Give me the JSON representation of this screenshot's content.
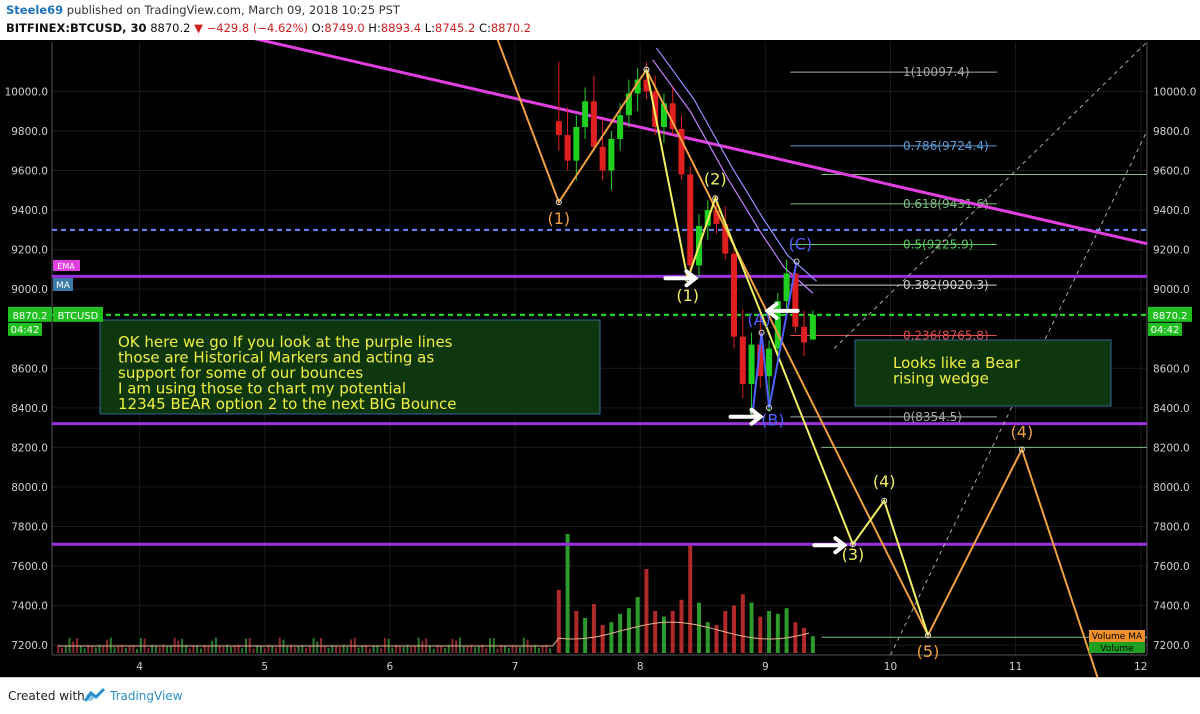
{
  "header": {
    "author": "Steele69",
    "published": " published on TradingView.com, March 09, 2018 10:25 PST",
    "symbol": "BITFINEX:BTCUSD, 30",
    "last": "8870.2",
    "change": "−429.8 (−4.62%)",
    "o_label": "O:",
    "o": "8749.0",
    "h_label": "H:",
    "h": "8893.4",
    "l_label": "L:",
    "l": "8745.2",
    "c_label": "C:",
    "c": "8870.2"
  },
  "footer": {
    "created": "Created with",
    "brand": "TradingView"
  },
  "colors": {
    "bg": "#000000",
    "up": "#20d020",
    "down": "#e02020",
    "purple": "#9b30e0",
    "magenta": "#e040e0",
    "orange": "#f0a040",
    "yellow": "#f0f060",
    "blue": "#6688ff",
    "green_dash": "#20e020"
  },
  "chart_data": {
    "type": "candlestick",
    "yaxis": {
      "ticks": [
        10000,
        9800,
        9600,
        9400,
        9200,
        9000,
        8600,
        8400,
        8200,
        8000,
        7800,
        7600,
        7400,
        7200
      ],
      "tick_labels": [
        "10000.0",
        "9800.0",
        "9600.0",
        "9400.0",
        "9200.0",
        "9000.0",
        "8600.0",
        "8400.0",
        "8200.0",
        "8000.0",
        "7800.0",
        "7600.0",
        "7400.0",
        "7200.0"
      ],
      "range": [
        7150,
        10250
      ]
    },
    "xaxis": {
      "ticks": [
        4,
        5,
        6,
        7,
        8,
        9,
        10,
        11,
        12
      ],
      "tick_labels": [
        "4",
        "5",
        "6",
        "7",
        "8",
        "9",
        "10",
        "11",
        "12"
      ],
      "range": [
        3.3,
        12.05
      ]
    },
    "price_label": {
      "value": 8870.2,
      "text": "8870.2",
      "symbol": "BTCUSD",
      "countdown": "04:42"
    },
    "indicator_labels": {
      "ema": "EMA",
      "ma": "MA",
      "volume": "Volume",
      "volume_ma": "Volume MA"
    },
    "candles": [
      {
        "t": 7.35,
        "o": 9850,
        "h": 10150,
        "l": 9700,
        "c": 9780
      },
      {
        "t": 7.42,
        "o": 9780,
        "h": 9920,
        "l": 9600,
        "c": 9650
      },
      {
        "t": 7.49,
        "o": 9650,
        "h": 9880,
        "l": 9550,
        "c": 9820
      },
      {
        "t": 7.56,
        "o": 9820,
        "h": 10020,
        "l": 9760,
        "c": 9950
      },
      {
        "t": 7.63,
        "o": 9950,
        "h": 10080,
        "l": 9700,
        "c": 9720
      },
      {
        "t": 7.7,
        "o": 9720,
        "h": 9860,
        "l": 9550,
        "c": 9600
      },
      {
        "t": 7.77,
        "o": 9600,
        "h": 9800,
        "l": 9500,
        "c": 9760
      },
      {
        "t": 7.84,
        "o": 9760,
        "h": 9940,
        "l": 9700,
        "c": 9880
      },
      {
        "t": 7.91,
        "o": 9880,
        "h": 10060,
        "l": 9820,
        "c": 9990
      },
      {
        "t": 7.98,
        "o": 9990,
        "h": 10120,
        "l": 9900,
        "c": 10060
      },
      {
        "t": 8.05,
        "o": 10060,
        "h": 10150,
        "l": 9960,
        "c": 10000
      },
      {
        "t": 8.12,
        "o": 10000,
        "h": 10080,
        "l": 9780,
        "c": 9820
      },
      {
        "t": 8.19,
        "o": 9820,
        "h": 9990,
        "l": 9740,
        "c": 9940
      },
      {
        "t": 8.26,
        "o": 9940,
        "h": 10020,
        "l": 9780,
        "c": 9810
      },
      {
        "t": 8.33,
        "o": 9810,
        "h": 9880,
        "l": 9550,
        "c": 9580
      },
      {
        "t": 8.4,
        "o": 9580,
        "h": 9620,
        "l": 9080,
        "c": 9120
      },
      {
        "t": 8.47,
        "o": 9120,
        "h": 9380,
        "l": 9060,
        "c": 9320
      },
      {
        "t": 8.54,
        "o": 9320,
        "h": 9450,
        "l": 9250,
        "c": 9400
      },
      {
        "t": 8.61,
        "o": 9400,
        "h": 9470,
        "l": 9280,
        "c": 9330
      },
      {
        "t": 8.68,
        "o": 9330,
        "h": 9420,
        "l": 9150,
        "c": 9180
      },
      {
        "t": 8.75,
        "o": 9180,
        "h": 9220,
        "l": 8700,
        "c": 8760
      },
      {
        "t": 8.82,
        "o": 8760,
        "h": 8900,
        "l": 8450,
        "c": 8520
      },
      {
        "t": 8.89,
        "o": 8520,
        "h": 8780,
        "l": 8360,
        "c": 8720
      },
      {
        "t": 8.96,
        "o": 8720,
        "h": 8880,
        "l": 8500,
        "c": 8560
      },
      {
        "t": 9.03,
        "o": 8560,
        "h": 8740,
        "l": 8380,
        "c": 8700
      },
      {
        "t": 9.1,
        "o": 8700,
        "h": 8980,
        "l": 8640,
        "c": 8940
      },
      {
        "t": 9.17,
        "o": 8940,
        "h": 9150,
        "l": 8880,
        "c": 9080
      },
      {
        "t": 9.24,
        "o": 9080,
        "h": 9120,
        "l": 8780,
        "c": 8810
      },
      {
        "t": 9.31,
        "o": 8810,
        "h": 8890,
        "l": 8660,
        "c": 8730
      },
      {
        "t": 9.38,
        "o": 8745,
        "h": 8893,
        "l": 8745,
        "c": 8870
      }
    ],
    "volume": [
      {
        "t": 7.35,
        "v": 0.45,
        "up": false
      },
      {
        "t": 7.42,
        "v": 0.85,
        "up": true
      },
      {
        "t": 7.49,
        "v": 0.3,
        "up": false
      },
      {
        "t": 7.56,
        "v": 0.25,
        "up": true
      },
      {
        "t": 7.63,
        "v": 0.35,
        "up": false
      },
      {
        "t": 7.7,
        "v": 0.2,
        "up": false
      },
      {
        "t": 7.77,
        "v": 0.22,
        "up": true
      },
      {
        "t": 7.84,
        "v": 0.28,
        "up": true
      },
      {
        "t": 7.91,
        "v": 0.32,
        "up": true
      },
      {
        "t": 7.98,
        "v": 0.4,
        "up": true
      },
      {
        "t": 8.05,
        "v": 0.6,
        "up": false
      },
      {
        "t": 8.12,
        "v": 0.3,
        "up": false
      },
      {
        "t": 8.19,
        "v": 0.26,
        "up": true
      },
      {
        "t": 8.26,
        "v": 0.3,
        "up": false
      },
      {
        "t": 8.33,
        "v": 0.38,
        "up": false
      },
      {
        "t": 8.4,
        "v": 0.78,
        "up": false
      },
      {
        "t": 8.47,
        "v": 0.36,
        "up": true
      },
      {
        "t": 8.54,
        "v": 0.22,
        "up": true
      },
      {
        "t": 8.61,
        "v": 0.2,
        "up": false
      },
      {
        "t": 8.68,
        "v": 0.3,
        "up": false
      },
      {
        "t": 8.75,
        "v": 0.34,
        "up": false
      },
      {
        "t": 8.82,
        "v": 0.42,
        "up": false
      },
      {
        "t": 8.89,
        "v": 0.36,
        "up": true
      },
      {
        "t": 8.96,
        "v": 0.26,
        "up": false
      },
      {
        "t": 9.03,
        "v": 0.3,
        "up": true
      },
      {
        "t": 9.1,
        "v": 0.28,
        "up": true
      },
      {
        "t": 9.17,
        "v": 0.32,
        "up": true
      },
      {
        "t": 9.24,
        "v": 0.22,
        "up": false
      },
      {
        "t": 9.31,
        "v": 0.18,
        "up": false
      },
      {
        "t": 9.38,
        "v": 0.12,
        "up": true
      }
    ],
    "fib_levels": [
      {
        "label": "1(10097.4)",
        "price": 10097.4,
        "color": "#a8a8a8"
      },
      {
        "label": "0.786(9724.4)",
        "price": 9724.4,
        "color": "#5b9bd5"
      },
      {
        "label": "0.618(9431.6)",
        "price": 9431.6,
        "color": "#7fbf7f"
      },
      {
        "label": "0.5(9225.9)",
        "price": 9225.9,
        "color": "#5ccf5c"
      },
      {
        "label": "0.382(9020.3)",
        "price": 9020.3,
        "color": "#cfcfcf"
      },
      {
        "label": "0.236(8765.8)",
        "price": 8765.8,
        "color": "#e05050"
      },
      {
        "label": "0(8354.5)",
        "price": 8354.5,
        "color": "#a8a8a8"
      }
    ],
    "horizontal_lines": [
      {
        "price": 9300,
        "style": "dashed",
        "color": "#6688ff"
      },
      {
        "price": 9065,
        "style": "solid",
        "color": "#9b30e0"
      },
      {
        "price": 8870.2,
        "style": "dashed",
        "color": "#20e020"
      },
      {
        "price": 8320,
        "style": "solid",
        "color": "#9b30e0"
      },
      {
        "price": 7710,
        "style": "solid",
        "color": "#9b30e0"
      }
    ],
    "trendline": {
      "color": "#e040e0",
      "from": {
        "t": 3.8,
        "p": 10430
      },
      "to": {
        "t": 12.05,
        "p": 9230
      }
    },
    "waves": [
      {
        "name": "orange-wave",
        "color": "#f0a040",
        "points": [
          {
            "t": 6.6,
            "p": 10700
          },
          {
            "t": 7.35,
            "p": 9440
          },
          {
            "t": 8.05,
            "p": 10110
          },
          {
            "t": 10.3,
            "p": 7250
          },
          {
            "t": 11.05,
            "p": 8190
          },
          {
            "t": 11.7,
            "p": 6950
          }
        ],
        "labels": [
          {
            "text": "(1)",
            "t": 7.35,
            "p": 9330
          },
          {
            "text": "(4)",
            "t": 11.05,
            "p": 8250
          },
          {
            "text": "(5)",
            "t": 10.3,
            "p": 7140
          }
        ]
      },
      {
        "name": "yellow-wave",
        "color": "#f0f060",
        "points": [
          {
            "t": 8.05,
            "p": 10110
          },
          {
            "t": 8.38,
            "p": 9050
          },
          {
            "t": 8.6,
            "p": 9460
          },
          {
            "t": 9.7,
            "p": 7710
          },
          {
            "t": 9.95,
            "p": 7930
          },
          {
            "t": 10.3,
            "p": 7250
          }
        ],
        "labels": [
          {
            "text": "(1)",
            "t": 8.38,
            "p": 8940
          },
          {
            "text": "(2)",
            "t": 8.6,
            "p": 9530
          },
          {
            "text": "(3)",
            "t": 9.7,
            "p": 7630
          },
          {
            "text": "(4)",
            "t": 9.95,
            "p": 8000
          }
        ]
      },
      {
        "name": "blue-abc",
        "color": "#5060ff",
        "points": [
          {
            "t": 8.9,
            "p": 8380
          },
          {
            "t": 8.97,
            "p": 8780
          },
          {
            "t": 9.03,
            "p": 8400
          },
          {
            "t": 9.25,
            "p": 9140
          }
        ],
        "labels": [
          {
            "text": "(A)",
            "t": 8.95,
            "p": 8820
          },
          {
            "text": "(B)",
            "t": 9.06,
            "p": 8310
          },
          {
            "text": "(C)",
            "t": 9.28,
            "p": 9200
          }
        ]
      }
    ],
    "annotations": [
      {
        "name": "note-left",
        "lines": [
          "OK here we go If you look at the purple lines",
          "those are Historical Markers and acting as",
          "support for some of our bounces",
          "I am using those to chart my potential",
          "12345 BEAR option 2 to the next BIG Bounce"
        ]
      },
      {
        "name": "note-right",
        "lines": [
          "Looks like a Bear",
          "rising wedge"
        ]
      }
    ]
  }
}
